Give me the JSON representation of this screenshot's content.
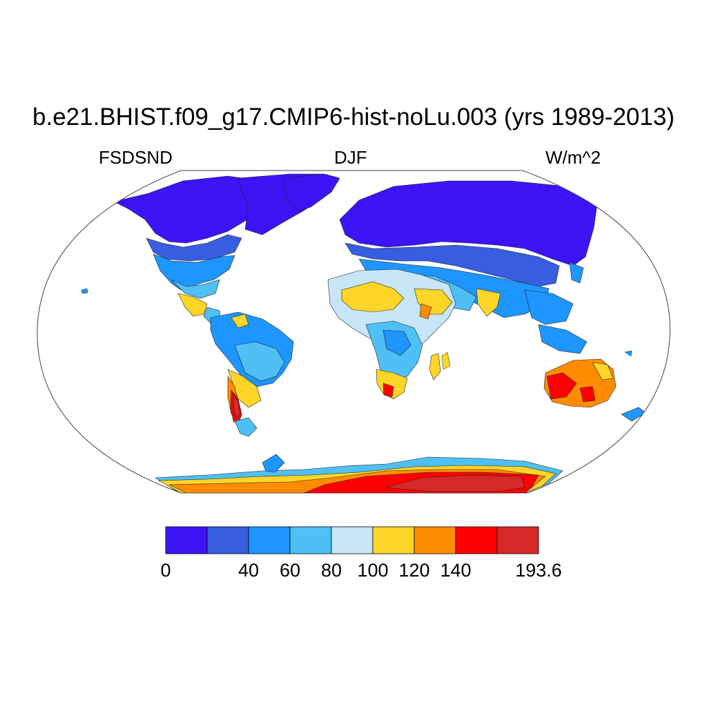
{
  "title": "b.e21.BHIST.f09_g17.CMIP6-hist-noLu.003 (yrs 1989-2013)",
  "subtitles": {
    "left": "FSDSND",
    "center": "DJF",
    "right": "W/m^2"
  },
  "colorbar": {
    "colors": [
      "#3c14f5",
      "#375ee0",
      "#1e96ff",
      "#4ec0f5",
      "#c8e6f8",
      "#ffd528",
      "#ff8c00",
      "#ff0000",
      "#d72828"
    ],
    "bounds": [
      0,
      20,
      40,
      60,
      80,
      100,
      120,
      140,
      160,
      193.6
    ],
    "labels": [
      "0",
      "40",
      "60",
      "80",
      "100",
      "120",
      "140",
      "193.6"
    ]
  },
  "map": {
    "projection": "robinson",
    "variable": "FSDSND",
    "season": "DJF",
    "units": "W/m^2"
  }
}
